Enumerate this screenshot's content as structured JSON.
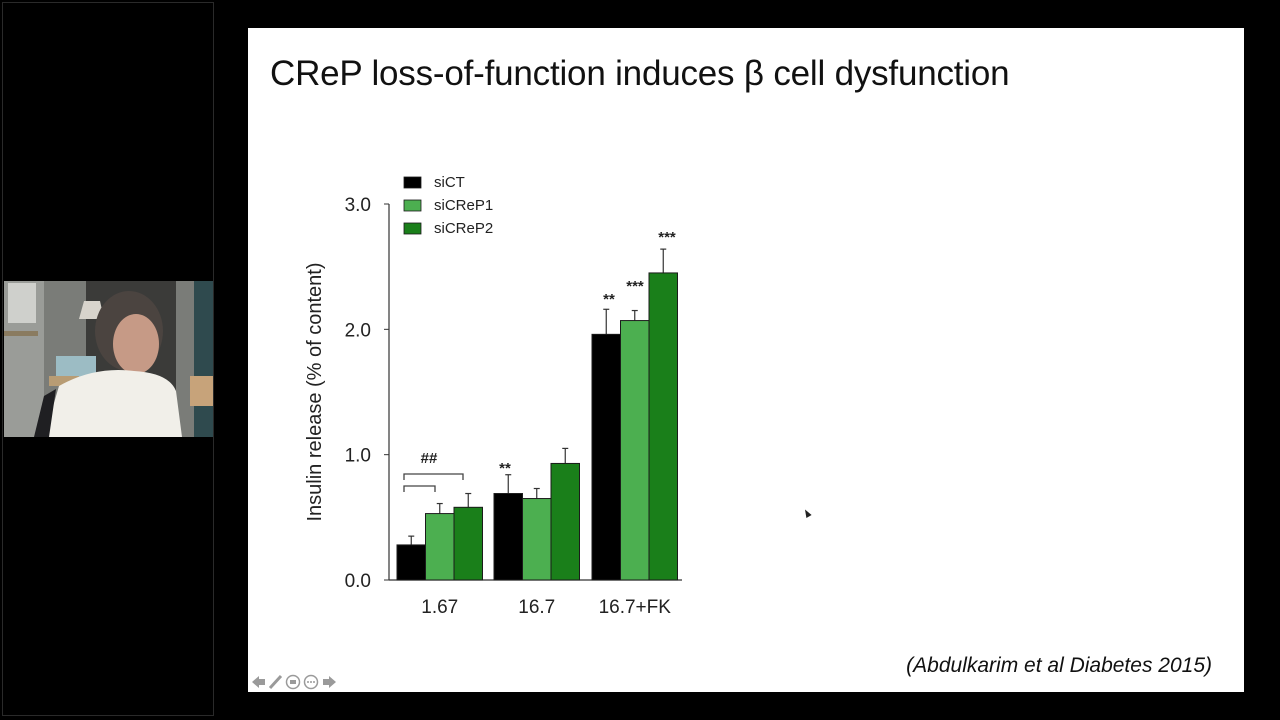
{
  "slide": {
    "title": "CReP loss-of-function induces β cell dysfunction",
    "citation": "(Abdulkarim et al Diabetes 2015)"
  },
  "nav_controls": [
    "previous-arrow",
    "pen-tool",
    "slide-menu",
    "more-options",
    "next-arrow"
  ],
  "video": {
    "description": "presenter webcam feed"
  },
  "chart_data": {
    "type": "bar",
    "title": "",
    "xlabel": "",
    "ylabel": "Insulin release (% of content)",
    "ylim": [
      0,
      3.0
    ],
    "yticks": [
      "0.0",
      "1.0",
      "2.0",
      "3.0"
    ],
    "grid": false,
    "legend_position": "top-left",
    "categories": [
      "1.67",
      "16.7",
      "16.7+FK"
    ],
    "series": [
      {
        "name": "siCT",
        "color": "#000000",
        "values": [
          0.28,
          0.69,
          1.96
        ],
        "errors": [
          0.07,
          0.15,
          0.2
        ]
      },
      {
        "name": "siCReP1",
        "color": "#4caf50",
        "values": [
          0.53,
          0.65,
          2.07
        ],
        "errors": [
          0.08,
          0.08,
          0.08
        ]
      },
      {
        "name": "siCReP2",
        "color": "#1a7f1a",
        "values": [
          0.58,
          0.93,
          2.45
        ],
        "errors": [
          0.11,
          0.12,
          0.19
        ]
      }
    ],
    "annotations": [
      {
        "text": "##",
        "category": "1.67",
        "note": "brackets comparing siCT vs siCReP1 and siCT vs siCReP2"
      },
      {
        "text": "**",
        "category": "16.7",
        "series": "siCT"
      },
      {
        "text": "**",
        "category": "16.7+FK",
        "series": "siCT"
      },
      {
        "text": "***",
        "category": "16.7+FK",
        "series": "siCReP1"
      },
      {
        "text": "***",
        "category": "16.7+FK",
        "series": "siCReP2"
      }
    ]
  }
}
